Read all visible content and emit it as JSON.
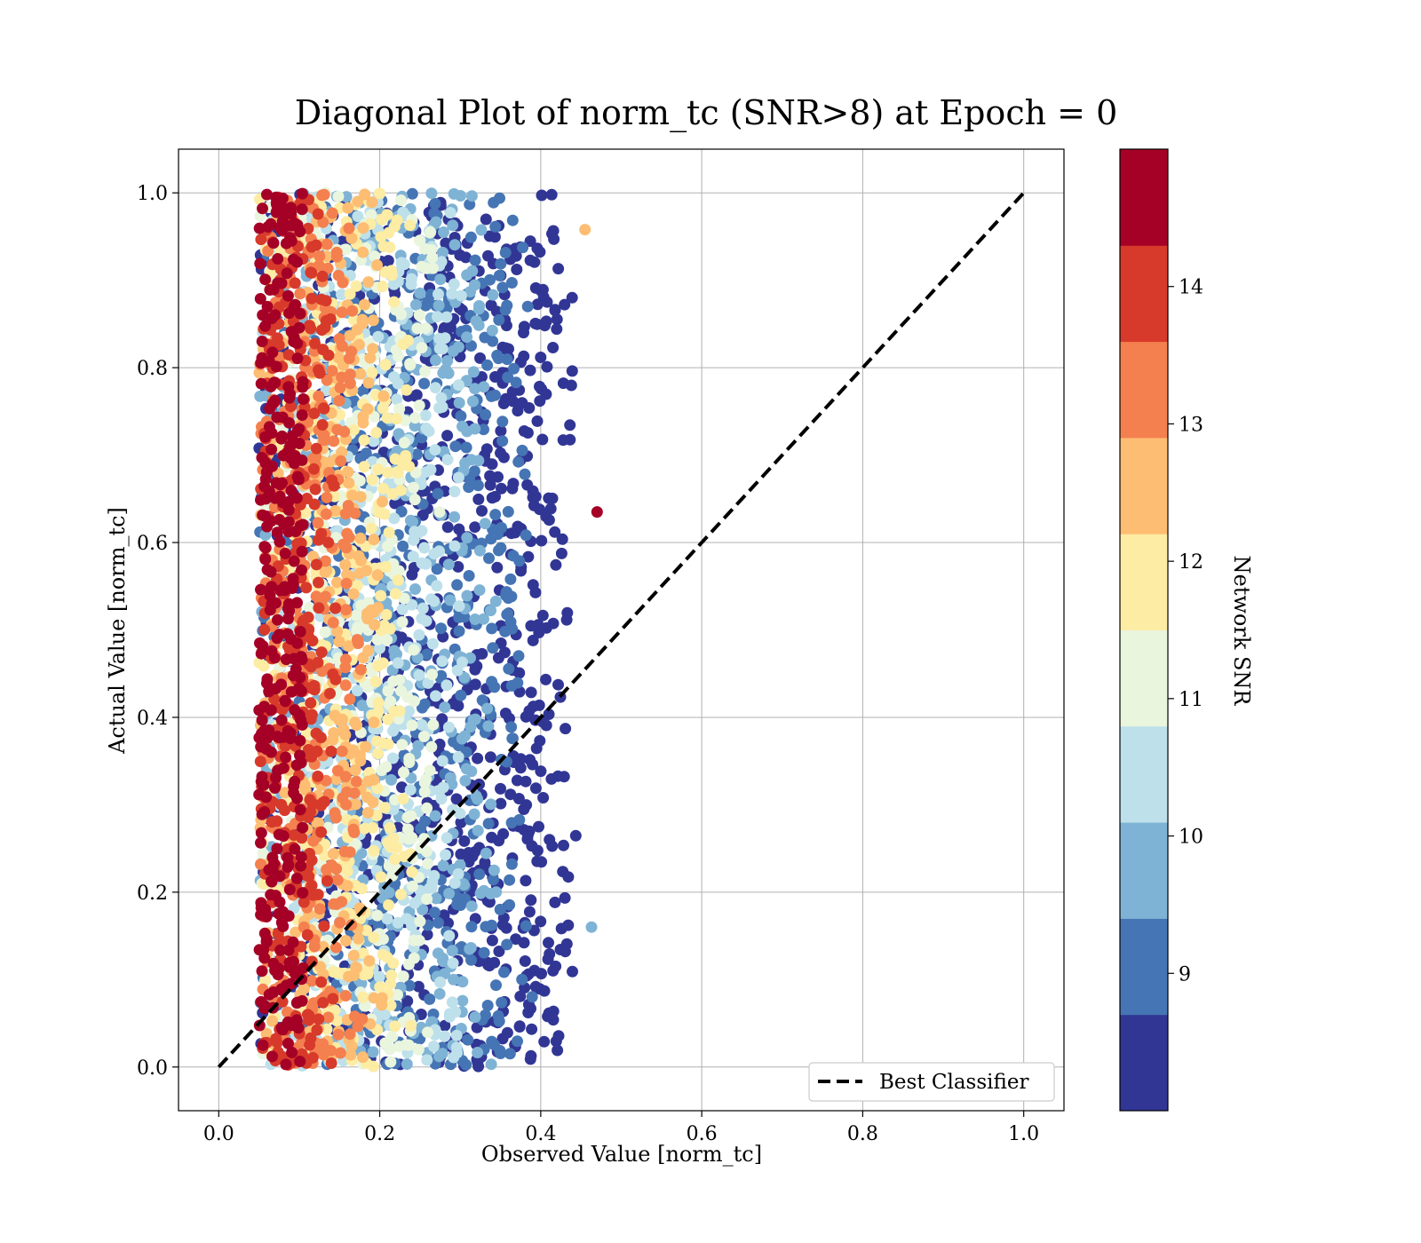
{
  "chart_data": {
    "type": "scatter",
    "title": "Diagonal Plot of norm_tc (SNR>8) at Epoch = 0",
    "xlabel": "Observed Value [norm_tc]",
    "ylabel": "Actual Value [norm_tc]",
    "xlim": [
      -0.05,
      1.05
    ],
    "ylim": [
      -0.05,
      1.05
    ],
    "xticks": [
      "0.0",
      "0.2",
      "0.4",
      "0.6",
      "0.8",
      "1.0"
    ],
    "yticks": [
      "0.0",
      "0.2",
      "0.4",
      "0.6",
      "0.8",
      "1.0"
    ],
    "grid": true,
    "series": [
      {
        "kind": "scatter",
        "color_by": "Network SNR",
        "x_range": [
          0.04,
          0.47
        ],
        "y_range": [
          0.0,
          1.0
        ],
        "description_of_distribution": "dense high-SNR points near x 0.05-0.10, lower SNR spreading to x ~0.45"
      },
      {
        "kind": "line",
        "name": "Best Classifier",
        "style": "dashed",
        "color": "#000000",
        "x": [
          0.0,
          1.0
        ],
        "y": [
          0.0,
          1.0
        ]
      }
    ],
    "legend": {
      "placement": "lower-right",
      "entries": [
        "Best Classifier"
      ]
    },
    "colorbar": {
      "label": "Network SNR",
      "range": [
        8,
        15
      ],
      "ticks": [
        "9",
        "10",
        "11",
        "12",
        "13",
        "14"
      ],
      "tick_values": [
        9,
        10,
        11,
        12,
        13,
        14
      ],
      "bins": [
        {
          "from": 8,
          "to": 8.7,
          "color": "#313695"
        },
        {
          "from": 8.7,
          "to": 9.4,
          "color": "#4575b4"
        },
        {
          "from": 9.4,
          "to": 10.1,
          "color": "#7fb3d5"
        },
        {
          "from": 10.1,
          "to": 10.8,
          "color": "#bde0eb"
        },
        {
          "from": 10.8,
          "to": 11.5,
          "color": "#eaf5de"
        },
        {
          "from": 11.5,
          "to": 12.2,
          "color": "#fdeca3"
        },
        {
          "from": 12.2,
          "to": 12.9,
          "color": "#fdbd72"
        },
        {
          "from": 12.9,
          "to": 13.6,
          "color": "#f4804f"
        },
        {
          "from": 13.6,
          "to": 14.3,
          "color": "#d73a2b"
        },
        {
          "from": 14.3,
          "to": 15.0,
          "color": "#a50026"
        }
      ]
    }
  }
}
